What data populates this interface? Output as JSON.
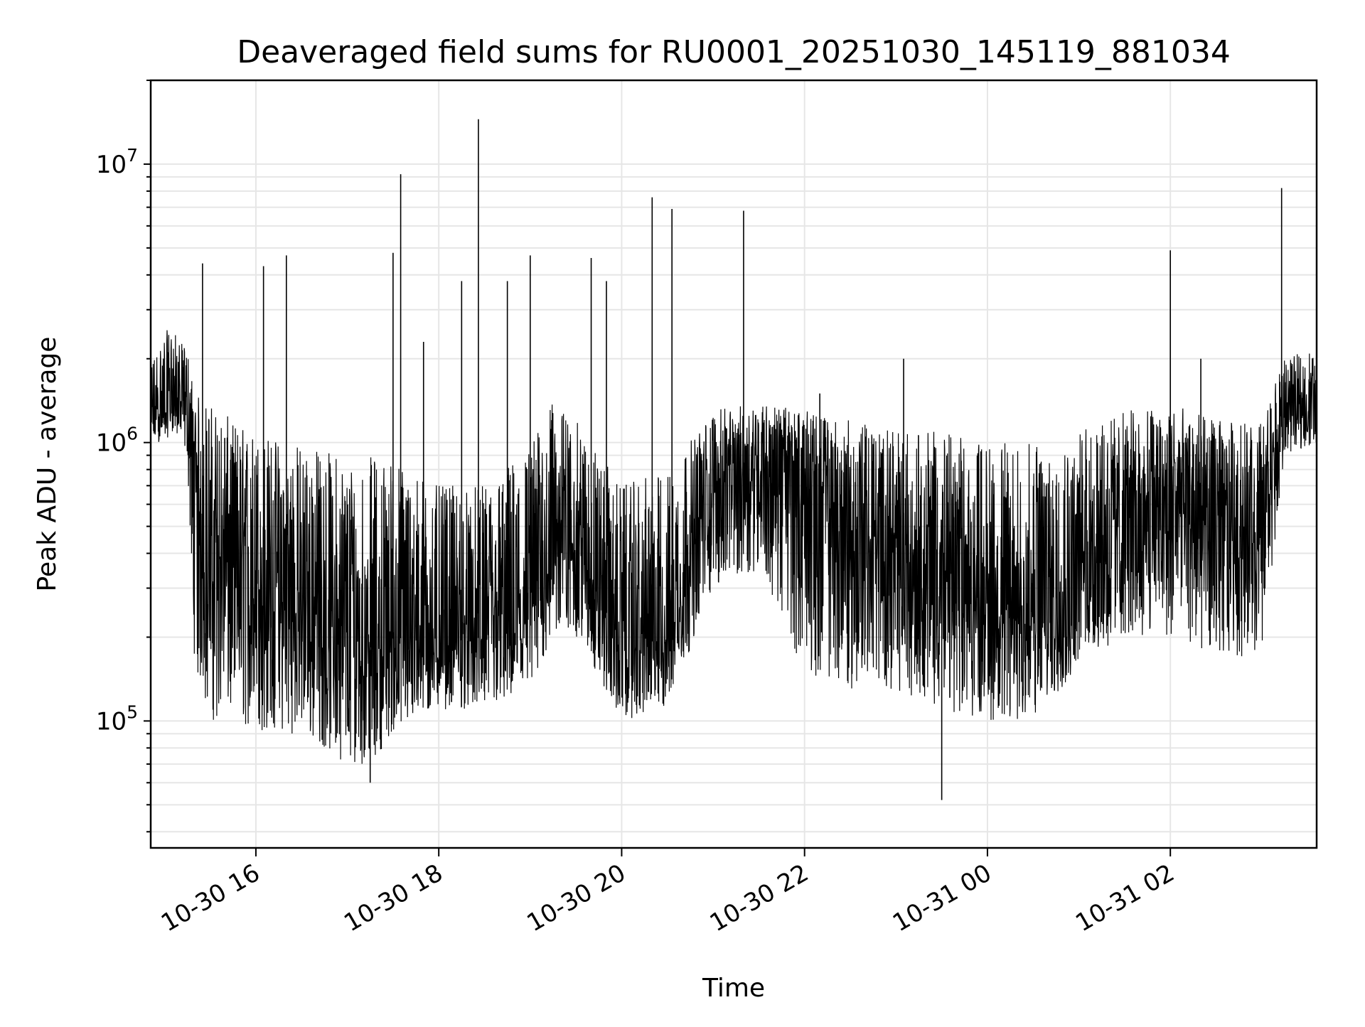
{
  "chart_data": {
    "type": "line",
    "title": "Deaveraged field sums for RU0001_20251030_145119_881034",
    "xlabel": "Time",
    "ylabel": "Peak ADU - average",
    "y_scale": "log",
    "xlim": [
      "2025-10-30 14:51",
      "2025-10-31 03:36"
    ],
    "ylim": [
      35000,
      20000000
    ],
    "grid": true,
    "line_color": "#000000",
    "grid_color": "#e6e6e6",
    "x_ticks": [
      {
        "value": "2025-10-30 16:00",
        "label": "10-30 16"
      },
      {
        "value": "2025-10-30 18:00",
        "label": "10-30 18"
      },
      {
        "value": "2025-10-30 20:00",
        "label": "10-30 20"
      },
      {
        "value": "2025-10-30 22:00",
        "label": "10-30 22"
      },
      {
        "value": "2025-10-31 00:00",
        "label": "10-31 00"
      },
      {
        "value": "2025-10-31 02:00",
        "label": "10-31 02"
      }
    ],
    "y_ticks": [
      {
        "value": 100000,
        "base": "10",
        "exp": "5"
      },
      {
        "value": 1000000,
        "base": "10",
        "exp": "6"
      },
      {
        "value": 10000000,
        "base": "10",
        "exp": "7"
      }
    ],
    "series": [
      {
        "x": [
          "2025-10-30 14:51",
          "2025-10-30 15:00",
          "2025-10-30 15:05",
          "2025-10-30 15:10",
          "2025-10-30 15:15",
          "2025-10-30 15:20",
          "2025-10-30 15:30",
          "2025-10-30 15:45",
          "2025-10-30 16:00",
          "2025-10-30 16:30",
          "2025-10-30 17:00",
          "2025-10-30 17:15",
          "2025-10-30 17:30",
          "2025-10-30 18:00",
          "2025-10-30 18:30",
          "2025-10-30 19:00",
          "2025-10-30 19:15",
          "2025-10-30 19:30",
          "2025-10-30 20:00",
          "2025-10-30 20:30",
          "2025-10-30 21:00",
          "2025-10-30 21:30",
          "2025-10-30 22:00",
          "2025-10-30 22:30",
          "2025-10-30 23:00",
          "2025-10-30 23:30",
          "2025-10-31 00:00",
          "2025-10-31 00:30",
          "2025-10-31 01:00",
          "2025-10-31 01:30",
          "2025-10-31 02:00",
          "2025-10-31 02:30",
          "2025-10-31 03:00",
          "2025-10-31 03:15",
          "2025-10-31 03:36"
        ],
        "y": [
          1200000,
          1300000,
          1500000,
          1400000,
          1300000,
          600000,
          400000,
          350000,
          300000,
          260000,
          200000,
          180000,
          200000,
          190000,
          200000,
          240000,
          500000,
          450000,
          180000,
          200000,
          700000,
          900000,
          800000,
          450000,
          400000,
          380000,
          250000,
          230000,
          380000,
          550000,
          600000,
          520000,
          480000,
          1300000,
          1400000
        ],
        "band_low": [
          1000000,
          1000000,
          1100000,
          1000000,
          900000,
          150000,
          100000,
          100000,
          90000,
          90000,
          70000,
          70000,
          90000,
          110000,
          110000,
          120000,
          200000,
          200000,
          100000,
          110000,
          300000,
          350000,
          150000,
          130000,
          130000,
          110000,
          100000,
          100000,
          150000,
          200000,
          200000,
          170000,
          170000,
          900000,
          1000000
        ],
        "band_high": [
          2000000,
          2500000,
          2600000,
          2300000,
          2200000,
          1500000,
          1400000,
          1200000,
          1100000,
          1000000,
          900000,
          900000,
          900000,
          700000,
          700000,
          1000000,
          1400000,
          1200000,
          700000,
          800000,
          1300000,
          1400000,
          1300000,
          1200000,
          1100000,
          1100000,
          1000000,
          1000000,
          1100000,
          1300000,
          1400000,
          1200000,
          1200000,
          2000000,
          2200000
        ],
        "spikes": [
          {
            "x": "2025-10-30 15:25",
            "y": 4400000
          },
          {
            "x": "2025-10-30 16:05",
            "y": 4300000
          },
          {
            "x": "2025-10-30 16:20",
            "y": 4700000
          },
          {
            "x": "2025-10-30 17:15",
            "y": 60000
          },
          {
            "x": "2025-10-30 17:30",
            "y": 4800000
          },
          {
            "x": "2025-10-30 17:35",
            "y": 9200000
          },
          {
            "x": "2025-10-30 17:50",
            "y": 2300000
          },
          {
            "x": "2025-10-30 18:15",
            "y": 3800000
          },
          {
            "x": "2025-10-30 18:26",
            "y": 14500000
          },
          {
            "x": "2025-10-30 18:45",
            "y": 3800000
          },
          {
            "x": "2025-10-30 19:00",
            "y": 4700000
          },
          {
            "x": "2025-10-30 19:40",
            "y": 4600000
          },
          {
            "x": "2025-10-30 19:50",
            "y": 3800000
          },
          {
            "x": "2025-10-30 20:20",
            "y": 7600000
          },
          {
            "x": "2025-10-30 20:33",
            "y": 6900000
          },
          {
            "x": "2025-10-30 21:20",
            "y": 6800000
          },
          {
            "x": "2025-10-30 22:10",
            "y": 1500000
          },
          {
            "x": "2025-10-30 23:05",
            "y": 2000000
          },
          {
            "x": "2025-10-30 23:30",
            "y": 52000
          },
          {
            "x": "2025-10-31 02:00",
            "y": 4900000
          },
          {
            "x": "2025-10-31 02:20",
            "y": 2000000
          },
          {
            "x": "2025-10-31 03:13",
            "y": 8200000
          }
        ]
      }
    ]
  }
}
